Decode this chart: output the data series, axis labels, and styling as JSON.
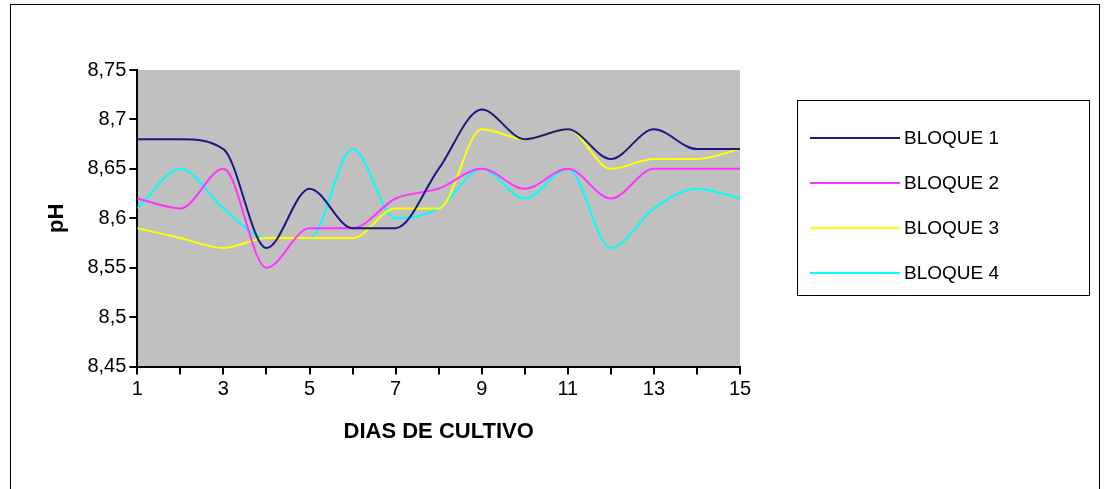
{
  "chart_data": {
    "type": "line",
    "xlabel": "DIAS DE CULTIVO",
    "ylabel": "pH",
    "x": [
      1,
      2,
      3,
      4,
      5,
      6,
      7,
      8,
      9,
      10,
      11,
      12,
      13,
      14,
      15
    ],
    "series": [
      {
        "name": "BLOQUE 1",
        "color": "#1a1a80",
        "values": [
          8.68,
          8.68,
          8.67,
          8.57,
          8.63,
          8.59,
          8.59,
          8.65,
          8.71,
          8.68,
          8.69,
          8.66,
          8.69,
          8.67,
          8.67
        ]
      },
      {
        "name": "BLOQUE 2",
        "color": "#ff33ff",
        "values": [
          8.62,
          8.61,
          8.65,
          8.55,
          8.59,
          8.59,
          8.62,
          8.63,
          8.65,
          8.63,
          8.65,
          8.62,
          8.65,
          8.65,
          8.65
        ]
      },
      {
        "name": "BLOQUE 3",
        "color": "#ffff00",
        "values": [
          8.59,
          8.58,
          8.57,
          8.58,
          8.58,
          8.58,
          8.61,
          8.61,
          8.69,
          8.68,
          8.69,
          8.65,
          8.66,
          8.66,
          8.67
        ]
      },
      {
        "name": "BLOQUE 4",
        "color": "#00ffff",
        "values": [
          8.61,
          8.65,
          8.61,
          8.58,
          8.58,
          8.67,
          8.6,
          8.61,
          8.65,
          8.62,
          8.65,
          8.57,
          8.61,
          8.63,
          8.62
        ]
      }
    ],
    "xlim": [
      1,
      15
    ],
    "xticks": [
      1,
      {
        "value": 2,
        "label": null
      },
      3,
      {
        "value": 4,
        "label": null
      },
      5,
      {
        "value": 6,
        "label": null
      },
      7,
      {
        "value": 8,
        "label": null
      },
      9,
      {
        "value": 10,
        "label": null
      },
      11,
      {
        "value": 12,
        "label": null
      },
      13,
      {
        "value": 14,
        "label": null
      },
      15
    ],
    "ylim": [
      8.45,
      8.75
    ],
    "yticks": [
      {
        "value": 8.45,
        "label": "8,45"
      },
      {
        "value": 8.5,
        "label": "8,5"
      },
      {
        "value": 8.55,
        "label": "8,55"
      },
      {
        "value": 8.6,
        "label": "8,6"
      },
      {
        "value": 8.65,
        "label": "8,65"
      },
      {
        "value": 8.7,
        "label": "8,7"
      },
      {
        "value": 8.75,
        "label": "8,75"
      }
    ],
    "grid": false,
    "legend": "right",
    "marker": "none",
    "line_style": "solid"
  }
}
